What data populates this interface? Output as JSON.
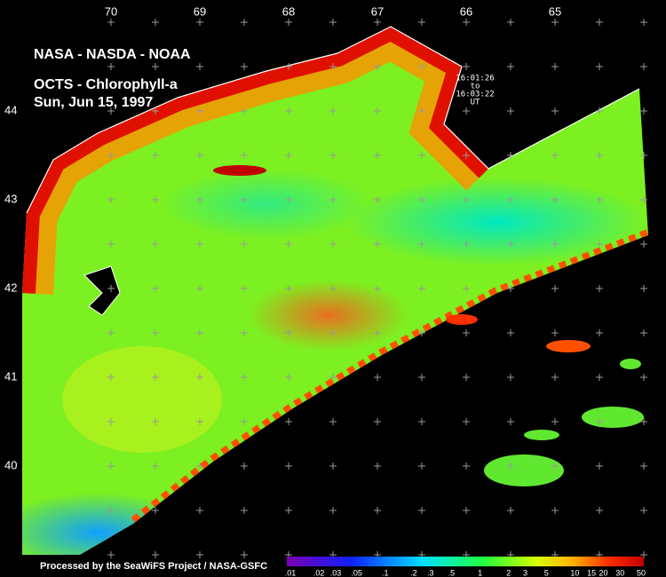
{
  "map": {
    "title_lines": [
      "NASA - NASDA - NOAA",
      "OCTS - Chlorophyll-a",
      "Sun, Jun 15, 1997"
    ],
    "time_lines": [
      "16:01:26",
      "to",
      "16:03:22",
      "UT"
    ],
    "longitude_labels": [
      70,
      69,
      68,
      67,
      66,
      65
    ],
    "latitude_labels": [
      44,
      43,
      42,
      41,
      40
    ],
    "footer": "Processed by the SeaWiFS Project / NASA-GSFC",
    "colorbar_labels": [
      ".01",
      ".02",
      ".03",
      ".05",
      ".1",
      ".2",
      ".3",
      ".5",
      "1",
      "2",
      "3",
      "5",
      "10",
      "15",
      "20",
      "30",
      "50"
    ]
  }
}
